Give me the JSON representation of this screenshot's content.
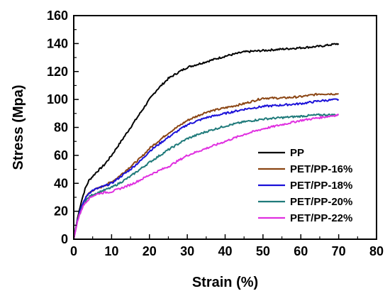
{
  "chart_data": {
    "type": "line",
    "xlabel": "Strain (%)",
    "ylabel": "Stress (Mpa)",
    "xlim": [
      0,
      80
    ],
    "ylim": [
      0,
      160
    ],
    "x_ticks": [
      0,
      10,
      20,
      30,
      40,
      50,
      60,
      70,
      80
    ],
    "y_ticks": [
      0,
      20,
      40,
      60,
      80,
      100,
      120,
      140,
      160
    ],
    "grid": false,
    "legend_position": "bottom-right",
    "series": [
      {
        "name": "PP",
        "color": "#000000",
        "x": [
          0,
          1,
          2,
          3,
          4,
          5,
          6,
          8,
          10,
          12,
          15,
          18,
          20,
          22,
          25,
          28,
          30,
          35,
          40,
          45,
          50,
          55,
          60,
          65,
          70
        ],
        "y": [
          0,
          15,
          27,
          36,
          42,
          45,
          48,
          53,
          60,
          68,
          80,
          92,
          100,
          107,
          115,
          120,
          123,
          127,
          131,
          134,
          135,
          136,
          137,
          138,
          140
        ]
      },
      {
        "name": "PET/PP-16%",
        "color": "#8b4513",
        "x": [
          0,
          1,
          2,
          3,
          4,
          5,
          7,
          10,
          12,
          15,
          18,
          20,
          25,
          30,
          35,
          40,
          45,
          50,
          55,
          60,
          65,
          70
        ],
        "y": [
          0,
          14,
          23,
          29,
          33,
          35,
          37,
          41,
          45,
          52,
          59,
          65,
          76,
          85,
          91,
          94,
          97,
          101,
          101,
          102,
          104,
          104
        ]
      },
      {
        "name": "PET/PP-18%",
        "color": "#1a10d8",
        "x": [
          0,
          1,
          2,
          3,
          4,
          5,
          7,
          10,
          12,
          15,
          18,
          20,
          25,
          30,
          35,
          40,
          45,
          50,
          55,
          60,
          65,
          70
        ],
        "y": [
          0,
          14,
          23,
          29,
          33,
          35,
          37,
          40,
          44,
          50,
          57,
          63,
          73,
          82,
          87,
          90,
          93,
          95,
          96,
          97,
          99,
          100
        ]
      },
      {
        "name": "PET/PP-20%",
        "color": "#1f7a7a",
        "x": [
          0,
          1,
          2,
          3,
          4,
          5,
          7,
          10,
          12,
          15,
          18,
          20,
          25,
          30,
          35,
          40,
          45,
          50,
          55,
          60,
          65,
          70
        ],
        "y": [
          0,
          13,
          21,
          27,
          30,
          32,
          34,
          37,
          40,
          45,
          51,
          55,
          64,
          72,
          77,
          81,
          84,
          86,
          87,
          88,
          89,
          89
        ]
      },
      {
        "name": "PET/PP-22%",
        "color": "#e030e0",
        "x": [
          0,
          1,
          2,
          3,
          4,
          5,
          7,
          10,
          12,
          15,
          18,
          20,
          25,
          30,
          35,
          40,
          45,
          50,
          55,
          60,
          65,
          70
        ],
        "y": [
          0,
          13,
          21,
          26,
          29,
          31,
          33,
          34,
          36,
          39,
          43,
          46,
          52,
          60,
          65,
          70,
          75,
          79,
          82,
          85,
          87,
          89
        ]
      }
    ]
  }
}
